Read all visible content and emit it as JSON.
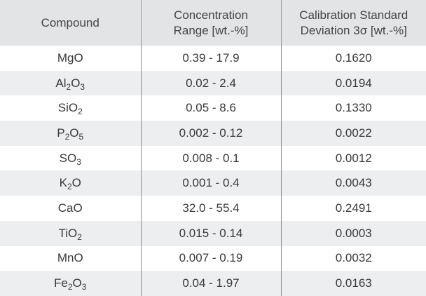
{
  "header": {
    "compound": "Compound",
    "range_line1": "Concentration",
    "range_line2": "Range [wt.-%]",
    "sd_line1": "Calibration Standard",
    "sd_line2": "Deviation 3σ [wt.-%]"
  },
  "rows": [
    {
      "formula": [
        {
          "t": "MgO"
        }
      ],
      "range": "0.39 - 17.9",
      "sd": "0.1620"
    },
    {
      "formula": [
        {
          "t": "Al"
        },
        {
          "s": "2"
        },
        {
          "t": "O"
        },
        {
          "s": "3"
        }
      ],
      "range": "0.02 - 2.4",
      "sd": "0.0194"
    },
    {
      "formula": [
        {
          "t": "SiO"
        },
        {
          "s": "2"
        }
      ],
      "range": "0.05 - 8.6",
      "sd": "0.1330"
    },
    {
      "formula": [
        {
          "t": "P"
        },
        {
          "s": "2"
        },
        {
          "t": "O"
        },
        {
          "s": "5"
        }
      ],
      "range": "0.002 - 0.12",
      "sd": "0.0022"
    },
    {
      "formula": [
        {
          "t": "SO"
        },
        {
          "s": "3"
        }
      ],
      "range": "0.008 - 0.1",
      "sd": "0.0012"
    },
    {
      "formula": [
        {
          "t": "K"
        },
        {
          "s": "2"
        },
        {
          "t": "O"
        }
      ],
      "range": "0.001 - 0.4",
      "sd": "0.0043"
    },
    {
      "formula": [
        {
          "t": "CaO"
        }
      ],
      "range": "32.0 - 55.4",
      "sd": "0.2491"
    },
    {
      "formula": [
        {
          "t": "TiO"
        },
        {
          "s": "2"
        }
      ],
      "range": "0.015 - 0.14",
      "sd": "0.0003"
    },
    {
      "formula": [
        {
          "t": "MnO"
        }
      ],
      "range": "0.007 - 0.19",
      "sd": "0.0032"
    },
    {
      "formula": [
        {
          "t": "Fe"
        },
        {
          "s": "2"
        },
        {
          "t": "O"
        },
        {
          "s": "3"
        }
      ],
      "range": "0.04 - 1.97",
      "sd": "0.0163"
    }
  ],
  "colors": {
    "header_bg": "#e2e4e6",
    "stripe_bg": "#eceef0",
    "divider": "#8c8c8c"
  }
}
